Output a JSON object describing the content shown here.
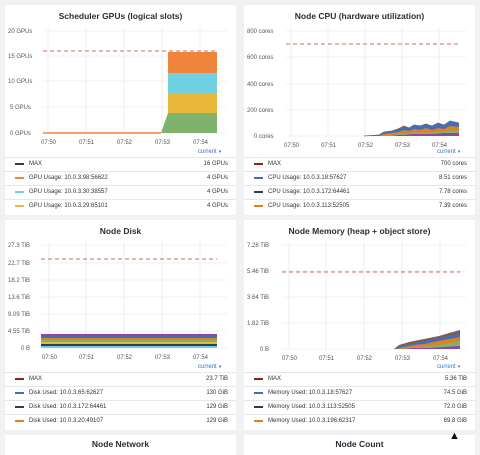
{
  "panels": {
    "gpu": {
      "title": "Scheduler GPUs (logical slots)",
      "yticks": [
        "20 GPUs",
        "15 GPUs",
        "10 GPUs",
        "5 GPUs",
        "0 GPUs"
      ],
      "xticks": [
        "07:50",
        "07:51",
        "07:52",
        "07:53",
        "07:54"
      ],
      "current_label": "current",
      "legend": [
        {
          "name": "MAX",
          "value": "16 GPUs",
          "color": "#c0392b"
        },
        {
          "name": "GPU Usage: 10.0.3.98:56622",
          "value": "4 GPUs",
          "color": "#e67e22"
        },
        {
          "name": "GPU Usage: 10.0.3.30:38557",
          "value": "4 GPUs",
          "color": "#5bc4d8"
        },
        {
          "name": "GPU Usage: 10.0.3.29:65101",
          "value": "4 GPUs",
          "color": "#eab839"
        }
      ]
    },
    "cpu": {
      "title": "Node CPU (hardware utilization)",
      "yticks": [
        "800 cores",
        "600 cores",
        "400 cores",
        "200 cores",
        "0 cores"
      ],
      "xticks": [
        "07:50",
        "07:51",
        "07:52",
        "07:53",
        "07:54"
      ],
      "current_label": "current",
      "legend": [
        {
          "name": "MAX",
          "value": "700 cores",
          "color": "#8e2020"
        },
        {
          "name": "CPU Usage: 10.0.3.18:57627",
          "value": "8.51 cores",
          "color": "#3c6fbf"
        },
        {
          "name": "CPU Usage: 10.0.3.172:64461",
          "value": "7.78 cores",
          "color": "#2c3e50"
        },
        {
          "name": "CPU Usage: 10.0.3.113:52505",
          "value": "7.39 cores",
          "color": "#e67e22"
        }
      ]
    },
    "disk": {
      "title": "Node Disk",
      "yticks": [
        "27.3 TiB",
        "22.7 TiB",
        "18.2 TiB",
        "13.6 TiB",
        "9.09 TiB",
        "4.55 TiB",
        "0 B"
      ],
      "xticks": [
        "07:50",
        "07:51",
        "07:52",
        "07:53",
        "07:54"
      ],
      "current_label": "current",
      "legend": [
        {
          "name": "MAX",
          "value": "23.7 TiB",
          "color": "#8e2020"
        },
        {
          "name": "Disk Used: 10.0.3.65:62627",
          "value": "130 GiB",
          "color": "#3c6fbf"
        },
        {
          "name": "Disk Used: 10.0.3.172:64461",
          "value": "129 GiB",
          "color": "#2c3e50"
        },
        {
          "name": "Disk Used: 10.0.3.20:49107",
          "value": "129 GiB",
          "color": "#e67e22"
        }
      ]
    },
    "mem": {
      "title": "Node Memory (heap + object store)",
      "yticks": [
        "7.28 TiB",
        "5.46 TiB",
        "3.64 TiB",
        "1.82 TiB",
        "0 B"
      ],
      "xticks": [
        "07:50",
        "07:51",
        "07:52",
        "07:53",
        "07:54"
      ],
      "current_label": "current",
      "legend": [
        {
          "name": "MAX",
          "value": "5.36 TiB",
          "color": "#8e2020"
        },
        {
          "name": "Memory Used: 10.0.3.18:57627",
          "value": "74.5 GiB",
          "color": "#3c6fbf"
        },
        {
          "name": "Memory Used: 10.0.3.113:52505",
          "value": "72.0 GiB",
          "color": "#2c3e50"
        },
        {
          "name": "Memory Used: 10.0.3.196:62317",
          "value": "69.8 GiB",
          "color": "#e67e22"
        }
      ]
    },
    "network": {
      "title": "Node Network"
    },
    "count": {
      "title": "Node Count"
    }
  }
}
